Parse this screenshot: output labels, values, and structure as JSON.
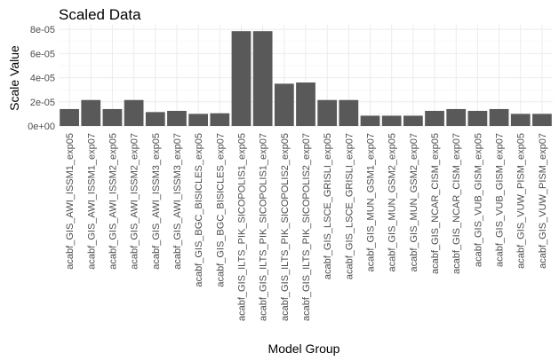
{
  "chart_data": {
    "type": "bar",
    "title": "Scaled Data",
    "xlabel": "Model Group",
    "ylabel": "Scale Value",
    "ylim": [
      0,
      8e-05
    ],
    "yticks": [
      0,
      2e-05,
      4e-05,
      6e-05,
      8e-05
    ],
    "ytick_labels": [
      "0e+00",
      "2e-05",
      "4e-05",
      "6e-05",
      "8e-05"
    ],
    "grid": true,
    "bar_color": "#595959",
    "categories": [
      "acabf_GIS_AWI_ISSM1_exp05",
      "acabf_GIS_AWI_ISSM1_exp07",
      "acabf_GIS_AWI_ISSM2_exp05",
      "acabf_GIS_AWI_ISSM2_exp07",
      "acabf_GIS_AWI_ISSM3_exp05",
      "acabf_GIS_AWI_ISSM3_exp07",
      "acabf_GIS_BGC_BISICLES_exp05",
      "acabf_GIS_BGC_BISICLES_exp07",
      "acabf_GIS_ILTS_PIK_SICOPOLIS1_exp05",
      "acabf_GIS_ILTS_PIK_SICOPOLIS1_exp07",
      "acabf_GIS_ILTS_PIK_SICOPOLIS2_exp05",
      "acabf_GIS_ILTS_PIK_SICOPOLIS2_exp07",
      "acabf_GIS_LSCE_GRISLI_exp05",
      "acabf_GIS_LSCE_GRISLI_exp07",
      "acabf_GIS_MUN_GSM1_exp07",
      "acabf_GIS_MUN_GSM2_exp05",
      "acabf_GIS_MUN_GSM2_exp07",
      "acabf_GIS_NCAR_CISM_exp05",
      "acabf_GIS_NCAR_CISM_exp07",
      "acabf_GIS_VUB_GISM_exp05",
      "acabf_GIS_VUB_GISM_exp07",
      "acabf_GIS_VUW_PISM_exp05",
      "acabf_GIS_VUW_PISM_exp07"
    ],
    "values": [
      1.4e-05,
      2.15e-05,
      1.4e-05,
      2.15e-05,
      1.15e-05,
      1.25e-05,
      1e-05,
      1.05e-05,
      7.85e-05,
      7.85e-05,
      3.5e-05,
      3.6e-05,
      2.15e-05,
      2.15e-05,
      8.5e-06,
      8.5e-06,
      8.5e-06,
      1.25e-05,
      1.4e-05,
      1.25e-05,
      1.4e-05,
      1e-05,
      1e-05
    ]
  }
}
